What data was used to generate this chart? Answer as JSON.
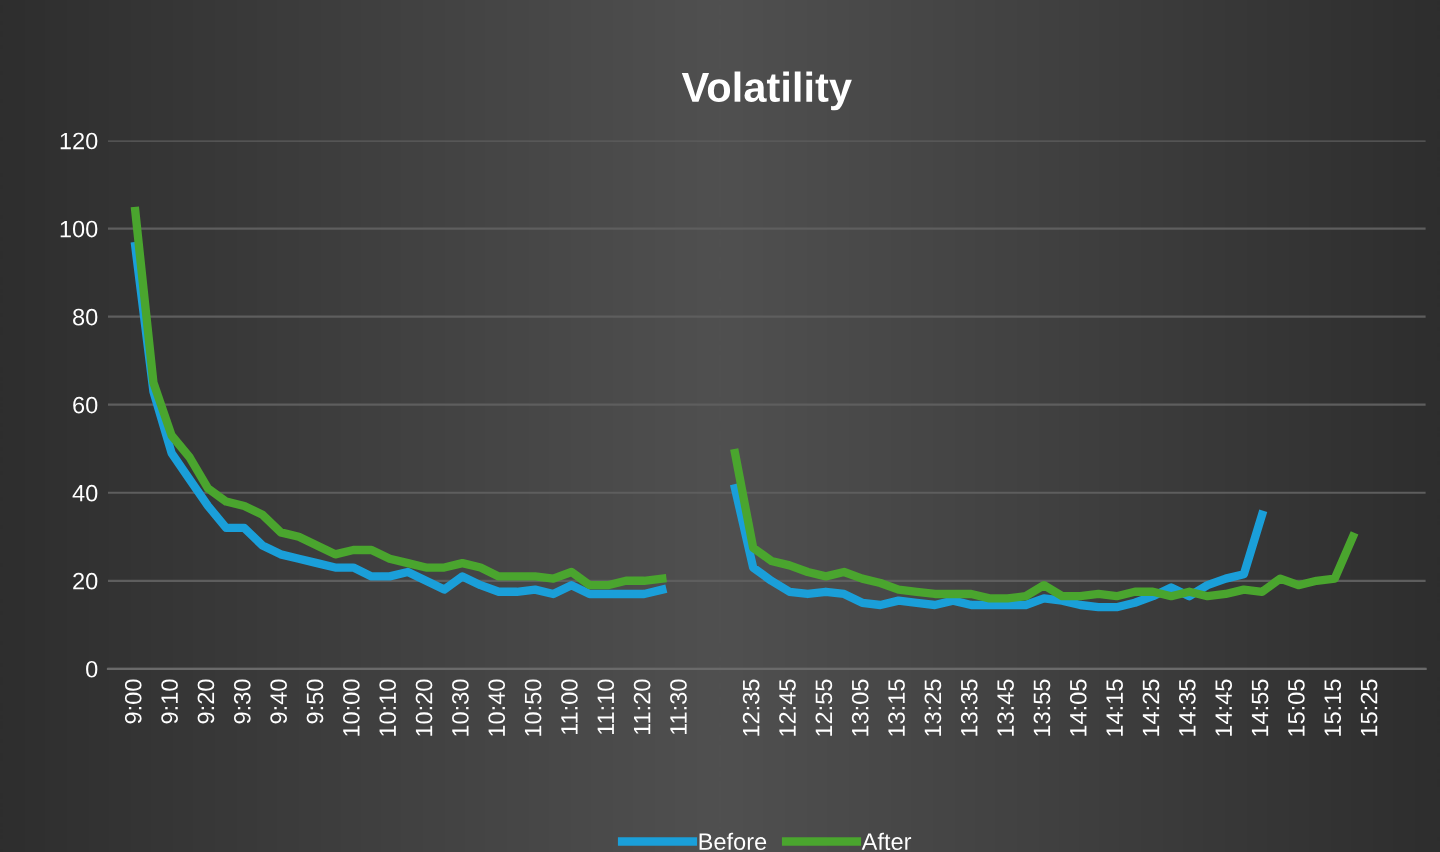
{
  "chart_data": {
    "type": "line",
    "title": "Volatility",
    "categories": [
      "9:00",
      null,
      "9:10",
      null,
      "9:20",
      null,
      "9:30",
      null,
      "9:40",
      null,
      "9:50",
      null,
      "10:00",
      null,
      "10:10",
      null,
      "10:20",
      null,
      "10:30",
      null,
      "10:40",
      null,
      "10:50",
      null,
      "11:00",
      null,
      "11:10",
      null,
      "11:20",
      null,
      "11:30",
      null,
      null,
      null,
      "12:35",
      null,
      "12:45",
      null,
      "12:55",
      null,
      "13:05",
      null,
      "13:15",
      null,
      "13:25",
      null,
      "13:35",
      null,
      "13:45",
      null,
      "13:55",
      null,
      "14:05",
      null,
      "14:15",
      null,
      "14:25",
      null,
      "14:35",
      null,
      "14:45",
      null,
      "14:55",
      null,
      "15:05",
      null,
      "15:15",
      null,
      "15:25"
    ],
    "series": [
      {
        "name": "Before",
        "color": "#1a9fd9",
        "values": [
          96,
          63,
          49,
          43,
          37,
          32,
          32,
          28,
          26,
          25,
          24,
          23,
          23,
          21,
          21,
          22,
          20,
          18,
          21,
          19,
          17.5,
          17.5,
          18,
          17,
          19,
          17,
          17,
          17,
          17,
          18,
          null,
          null,
          null,
          41,
          23,
          20,
          17.5,
          17,
          17.5,
          17,
          15,
          14.5,
          15.5,
          15,
          14.5,
          15.5,
          14.5,
          14.5,
          14.5,
          14.5,
          16,
          15.5,
          14.5,
          14,
          14,
          15,
          16.5,
          18.5,
          16.5,
          19,
          20.5,
          21.5,
          35,
          null,
          null,
          null,
          null,
          null,
          null
        ]
      },
      {
        "name": "After",
        "color": "#4aa52e",
        "values": [
          104,
          65,
          53,
          48,
          41,
          38,
          37,
          35,
          31,
          30,
          28,
          26,
          27,
          27,
          25,
          24,
          23,
          23,
          24,
          23,
          21,
          21,
          21,
          20.5,
          22,
          19,
          19,
          20,
          20,
          20.5,
          null,
          null,
          null,
          49,
          27.5,
          24.5,
          23.5,
          22,
          21,
          22,
          20.5,
          19.5,
          18,
          17.5,
          17,
          17,
          17,
          16,
          16,
          16.5,
          19,
          16.5,
          16.5,
          17,
          16.5,
          17.5,
          17.5,
          16.5,
          17.5,
          16.5,
          17,
          18,
          17.5,
          20.5,
          19,
          20,
          20.5,
          30,
          null
        ]
      }
    ],
    "ylim": [
      0,
      120
    ],
    "yticks": [
      0,
      20,
      40,
      60,
      80,
      100,
      120
    ],
    "grid": "y",
    "legend": "bottom",
    "marker": "none",
    "line_style": "solid"
  }
}
